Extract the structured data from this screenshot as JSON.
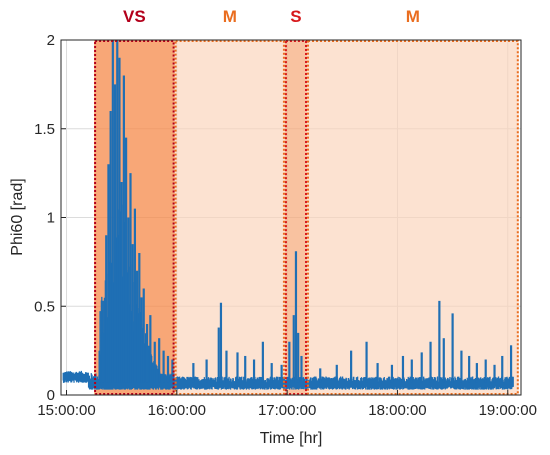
{
  "chart_data": {
    "type": "line",
    "title": "",
    "xlabel": "Time [hr]",
    "ylabel": "Phi60 [rad]",
    "ylim": [
      0,
      2
    ],
    "y_ticks": [
      "0",
      "0.5",
      "1",
      "1.5",
      "2"
    ],
    "y_tick_values": [
      0,
      0.5,
      1,
      1.5,
      2
    ],
    "x_tick_labels": [
      "15:00:00",
      "16:00:00",
      "17:00:00",
      "18:00:00",
      "19:00:00"
    ],
    "x_tick_hours": [
      15,
      16,
      17,
      18,
      19
    ],
    "xlim_hours": [
      14.95,
      19.12
    ],
    "grid": true,
    "series_color": "#1f6fb4",
    "regions": [
      {
        "label": "VS",
        "start_hr": 15.25,
        "end_hr": 15.98,
        "fill": "#f5894a",
        "fill_opacity": 0.75,
        "border": "#b3001b",
        "label_color": "#b3001b"
      },
      {
        "label": "M",
        "start_hr": 15.98,
        "end_hr": 16.98,
        "fill": "#fbd3b8",
        "fill_opacity": 0.65,
        "border": "#ea6d1f",
        "label_color": "#ea6d1f"
      },
      {
        "label": "S",
        "start_hr": 16.98,
        "end_hr": 17.18,
        "fill": "#f7a878",
        "fill_opacity": 0.7,
        "border": "#d7191c",
        "label_color": "#d7191c"
      },
      {
        "label": "M",
        "start_hr": 17.18,
        "end_hr": 19.1,
        "fill": "#fbd3b8",
        "fill_opacity": 0.65,
        "border": "#ea6d1f",
        "label_color": "#ea6d1f"
      }
    ],
    "base_levels": [
      {
        "from": 14.97,
        "to": 15.2,
        "level": 0.115,
        "jitter": 0.03
      },
      {
        "from": 15.2,
        "to": 15.98,
        "level": 0.09,
        "jitter": 0.05
      },
      {
        "from": 15.98,
        "to": 19.05,
        "level": 0.08,
        "jitter": 0.035
      }
    ],
    "peaks": [
      [
        15.3,
        0.25
      ],
      [
        15.33,
        0.35
      ],
      [
        15.36,
        0.9
      ],
      [
        15.38,
        1.3
      ],
      [
        15.4,
        1.6
      ],
      [
        15.42,
        2.0
      ],
      [
        15.44,
        1.75
      ],
      [
        15.46,
        2.0
      ],
      [
        15.48,
        1.9
      ],
      [
        15.5,
        1.2
      ],
      [
        15.52,
        1.8
      ],
      [
        15.54,
        1.45
      ],
      [
        15.56,
        1.0
      ],
      [
        15.58,
        1.25
      ],
      [
        15.6,
        0.85
      ],
      [
        15.62,
        1.05
      ],
      [
        15.64,
        0.7
      ],
      [
        15.66,
        0.8
      ],
      [
        15.68,
        0.55
      ],
      [
        15.7,
        0.6
      ],
      [
        15.73,
        0.4
      ],
      [
        15.76,
        0.45
      ],
      [
        15.8,
        0.3
      ],
      [
        15.84,
        0.32
      ],
      [
        15.88,
        0.25
      ],
      [
        15.92,
        0.22
      ],
      [
        15.96,
        0.2
      ],
      [
        16.15,
        0.18
      ],
      [
        16.27,
        0.2
      ],
      [
        16.38,
        0.38
      ],
      [
        16.4,
        0.52
      ],
      [
        16.45,
        0.25
      ],
      [
        16.55,
        0.24
      ],
      [
        16.62,
        0.22
      ],
      [
        16.7,
        0.2
      ],
      [
        16.78,
        0.3
      ],
      [
        16.86,
        0.18
      ],
      [
        16.95,
        0.17
      ],
      [
        17.02,
        0.3
      ],
      [
        17.06,
        0.45
      ],
      [
        17.08,
        0.81
      ],
      [
        17.1,
        0.35
      ],
      [
        17.13,
        0.22
      ],
      [
        17.3,
        0.15
      ],
      [
        17.45,
        0.17
      ],
      [
        17.58,
        0.25
      ],
      [
        17.72,
        0.3
      ],
      [
        17.82,
        0.18
      ],
      [
        17.95,
        0.17
      ],
      [
        18.05,
        0.22
      ],
      [
        18.13,
        0.2
      ],
      [
        18.22,
        0.24
      ],
      [
        18.3,
        0.3
      ],
      [
        18.38,
        0.53
      ],
      [
        18.42,
        0.32
      ],
      [
        18.5,
        0.46
      ],
      [
        18.58,
        0.25
      ],
      [
        18.65,
        0.22
      ],
      [
        18.72,
        0.18
      ],
      [
        18.8,
        0.2
      ],
      [
        18.88,
        0.17
      ],
      [
        18.95,
        0.22
      ],
      [
        19.03,
        0.28
      ]
    ]
  }
}
